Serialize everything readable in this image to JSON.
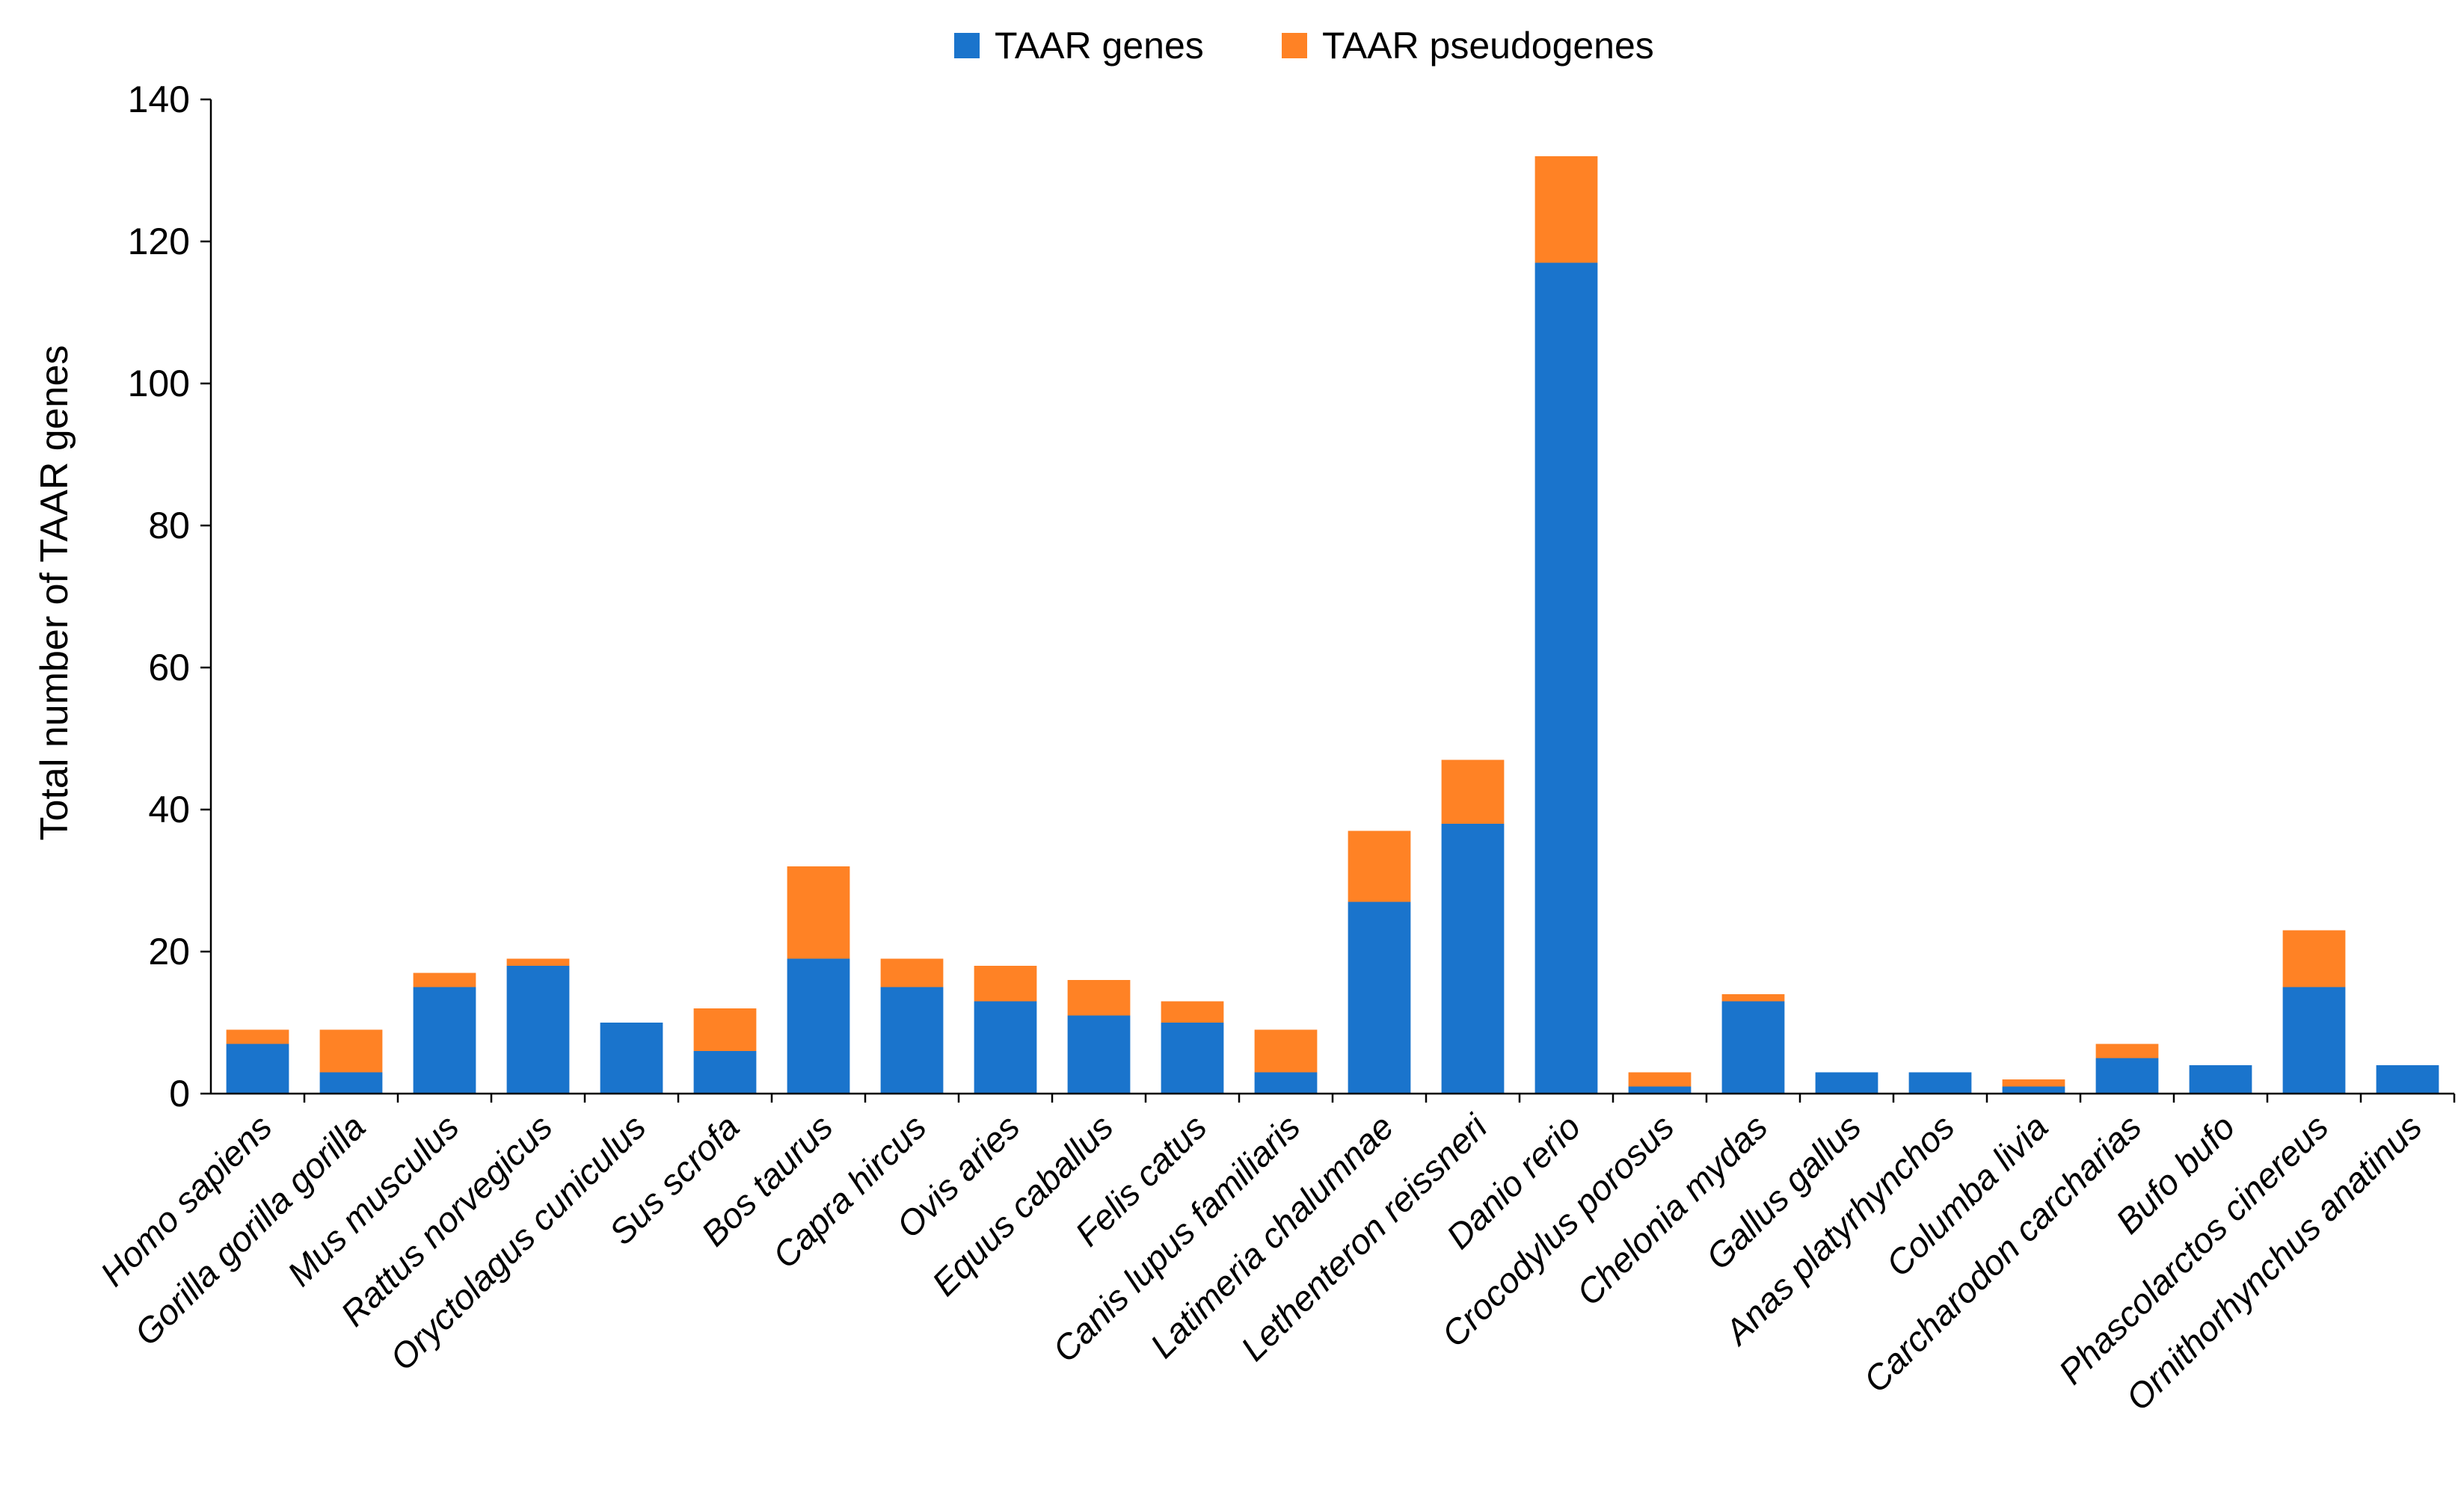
{
  "chart_data": {
    "type": "bar",
    "stacked": true,
    "title": "",
    "xlabel": "",
    "ylabel": "Total number of TAAR genes",
    "ylim": [
      0,
      140
    ],
    "yticks": [
      0,
      20,
      40,
      60,
      80,
      100,
      120,
      140
    ],
    "grid": false,
    "legend_position": "top-center",
    "categories": [
      "Homo sapiens",
      "Gorilla gorilla gorilla",
      "Mus musculus",
      "Rattus norvegicus",
      "Oryctolagus cuniculus",
      "Sus scrofa",
      "Bos taurus",
      "Capra hircus",
      "Ovis aries",
      "Equus caballus",
      "Felis catus",
      "Canis lupus familiaris",
      "Latimeria chalumnae",
      "Lethenteron reissneri",
      "Danio rerio",
      "Crocodylus porosus",
      "Chelonia mydas",
      "Gallus gallus",
      "Anas platyrhynchos",
      "Columba livia",
      "Carcharodon carcharias",
      "Bufo bufo",
      "Phascolarctos cinereus",
      "Ornithorhynchus anatinus"
    ],
    "series": [
      {
        "name": "TAAR genes",
        "color": "#1a74cc",
        "values": [
          7,
          3,
          15,
          18,
          10,
          6,
          19,
          15,
          13,
          11,
          10,
          3,
          27,
          38,
          117,
          1,
          13,
          3,
          3,
          1,
          5,
          4,
          15,
          4
        ]
      },
      {
        "name": "TAAR pseudogenes",
        "color": "#ff8225",
        "values": [
          2,
          6,
          2,
          1,
          0,
          6,
          13,
          4,
          5,
          5,
          3,
          6,
          10,
          9,
          15,
          2,
          1,
          0,
          0,
          1,
          2,
          0,
          8,
          0
        ]
      }
    ]
  }
}
